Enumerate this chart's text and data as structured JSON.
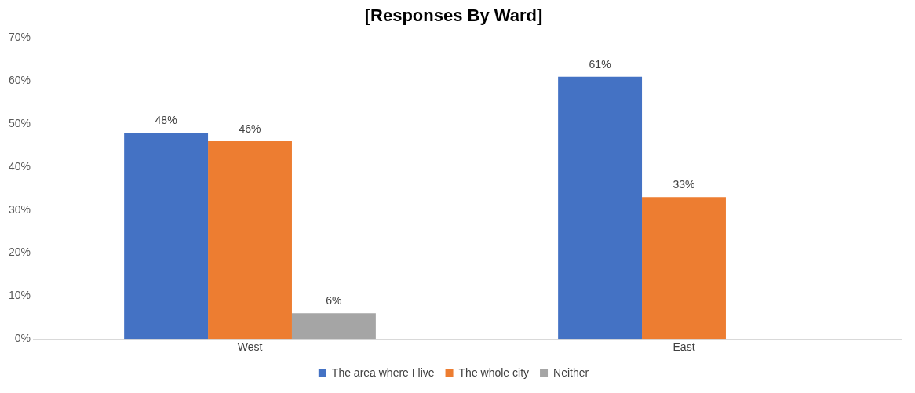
{
  "chart_data": {
    "type": "bar",
    "title": "[Responses By Ward]",
    "categories": [
      "West",
      "East"
    ],
    "series": [
      {
        "name": "The area where I live",
        "color": "#4472c4",
        "values": [
          48,
          61
        ],
        "value_labels": [
          "48%",
          "61%"
        ]
      },
      {
        "name": "The whole city",
        "color": "#ed7d31",
        "values": [
          46,
          33
        ],
        "value_labels": [
          "46%",
          "33%"
        ]
      },
      {
        "name": "Neither",
        "color": "#a5a5a5",
        "values": [
          6,
          null
        ],
        "value_labels": [
          "6%",
          null
        ]
      }
    ],
    "ylim": [
      0,
      70
    ],
    "yticks": [
      {
        "value": 0,
        "label": "0%"
      },
      {
        "value": 10,
        "label": "10%"
      },
      {
        "value": 20,
        "label": "20%"
      },
      {
        "value": 30,
        "label": "30%"
      },
      {
        "value": 40,
        "label": "40%"
      },
      {
        "value": 50,
        "label": "50%"
      },
      {
        "value": 60,
        "label": "60%"
      },
      {
        "value": 70,
        "label": "70%"
      }
    ],
    "grid": false,
    "legend": "bottom"
  }
}
